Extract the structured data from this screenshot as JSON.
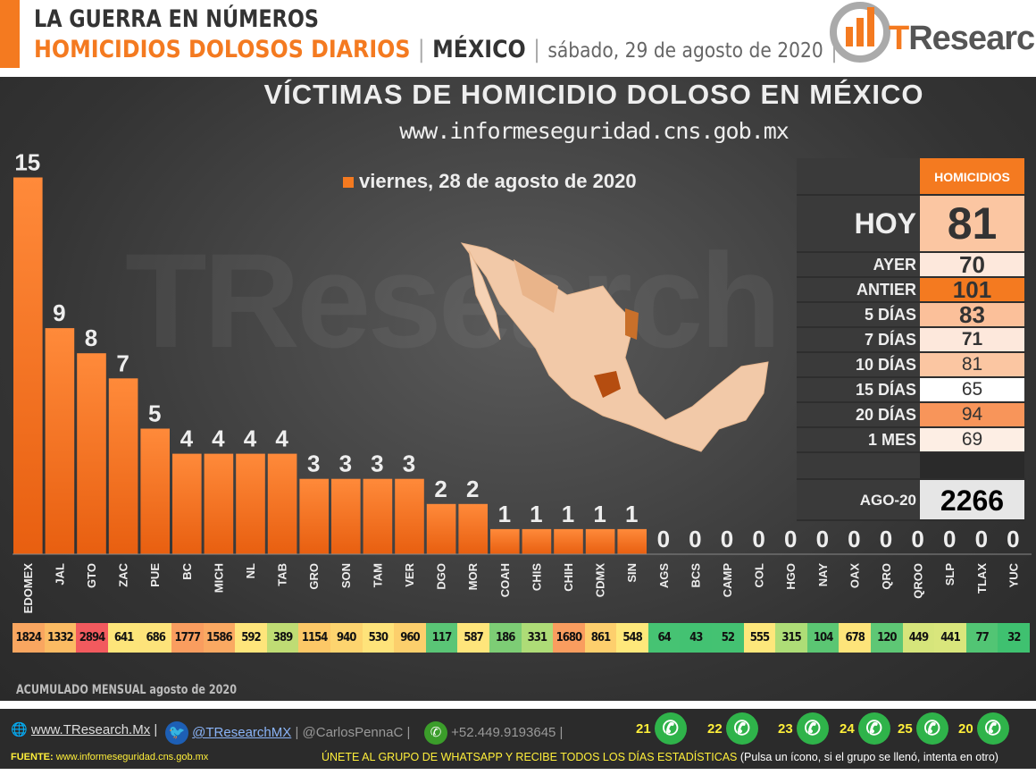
{
  "header": {
    "line1": "LA GUERRA EN NÚMEROS",
    "line2": "HOMICIDIOS DOLOSOS DIARIOS",
    "sep": "|",
    "country": "MÉXICO",
    "date": "sábado, 29 de agosto de 2020",
    "logo_t": "T",
    "logo_rest": "Research"
  },
  "watermark": "TResearch",
  "accent": "#f47a20",
  "chart_data": {
    "type": "bar",
    "title": "VÍCTIMAS DE HOMICIDIO DOLOSO EN MÉXICO",
    "subtitle": "www.informeseguridad.cns.gob.mx",
    "legend": "viernes, 28 de agosto de 2020",
    "categories": [
      "EDOMEX",
      "JAL",
      "GTO",
      "ZAC",
      "PUE",
      "BC",
      "MICH",
      "NL",
      "TAB",
      "GRO",
      "SON",
      "TAM",
      "VER",
      "DGO",
      "MOR",
      "COAH",
      "CHIS",
      "CHIH",
      "CDMX",
      "SIN",
      "AGS",
      "BCS",
      "CAMP",
      "COL",
      "HGO",
      "NAY",
      "OAX",
      "QRO",
      "QROO",
      "SLP",
      "TLAX",
      "YUC"
    ],
    "values": [
      15,
      9,
      8,
      7,
      5,
      4,
      4,
      4,
      4,
      3,
      3,
      3,
      3,
      2,
      2,
      1,
      1,
      1,
      1,
      1,
      0,
      0,
      0,
      0,
      0,
      0,
      0,
      0,
      0,
      0,
      0,
      0
    ],
    "monthly_label": "ACUMULADO MENSUAL agosto de 2020",
    "monthly": [
      1824,
      1332,
      2894,
      641,
      686,
      1777,
      1586,
      592,
      389,
      1154,
      940,
      530,
      960,
      117,
      587,
      186,
      331,
      1680,
      861,
      548,
      64,
      43,
      52,
      555,
      315,
      104,
      678,
      120,
      449,
      441,
      77,
      32
    ],
    "monthly_colors": [
      "#f9a660",
      "#fbbb63",
      "#f25a5e",
      "#fde57a",
      "#fde37a",
      "#f99d5f",
      "#faa962",
      "#fee57b",
      "#bfdc74",
      "#fcc867",
      "#fdd46f",
      "#fee37a",
      "#fccf6c",
      "#5ac576",
      "#fee57b",
      "#7dcd75",
      "#aedc77",
      "#f99d5f",
      "#fdcf6d",
      "#fee87b",
      "#46c373",
      "#43c272",
      "#44c272",
      "#fde77b",
      "#aedd77",
      "#5bc673",
      "#fde47a",
      "#5ec775",
      "#d6e57b",
      "#d9e67c",
      "#52c574",
      "#3fc170"
    ],
    "ylim": [
      0,
      15
    ]
  },
  "summary": {
    "header": "HOMICIDIOS",
    "rows": [
      {
        "label": "HOY",
        "value": "81",
        "color": "#fbc6a2"
      },
      {
        "label": "AYER",
        "value": "70",
        "color": "#fde8dc"
      },
      {
        "label": "ANTIER",
        "value": "101",
        "color": "#f47a20"
      },
      {
        "label": "5 DÍAS",
        "value": "83",
        "color": "#fbc09a"
      },
      {
        "label": "7 DÍAS",
        "value": "71",
        "color": "#fde8dc"
      },
      {
        "label": "10 DÍAS",
        "value": "81",
        "color": "#fbc6a2"
      },
      {
        "label": "15 DÍAS",
        "value": "65",
        "color": "#ffffff"
      },
      {
        "label": "20 DÍAS",
        "value": "94",
        "color": "#f8955a"
      },
      {
        "label": "1 MES",
        "value": "69",
        "color": "#fdeee4"
      }
    ],
    "month_label": "AGO-20",
    "month_value": "2266"
  },
  "footer": {
    "web": "www.TResearch.Mx",
    "twitter": "@TResearchMX",
    "twitter2": "@CarlosPennaC",
    "phone": "+52.449.9193645",
    "whatsapp_groups": [
      "21",
      "22",
      "23",
      "24",
      "25",
      "20"
    ],
    "fuente_label": "FUENTE:",
    "fuente": "www.informeseguridad.cns.gob.mx",
    "join": "ÚNETE AL GRUPO DE WHATSAPP Y RECIBE TODOS LOS DÍAS ESTADÍSTICAS",
    "join_note": "(Pulsa un ícono, si el grupo se llenó, intenta en otro)"
  }
}
